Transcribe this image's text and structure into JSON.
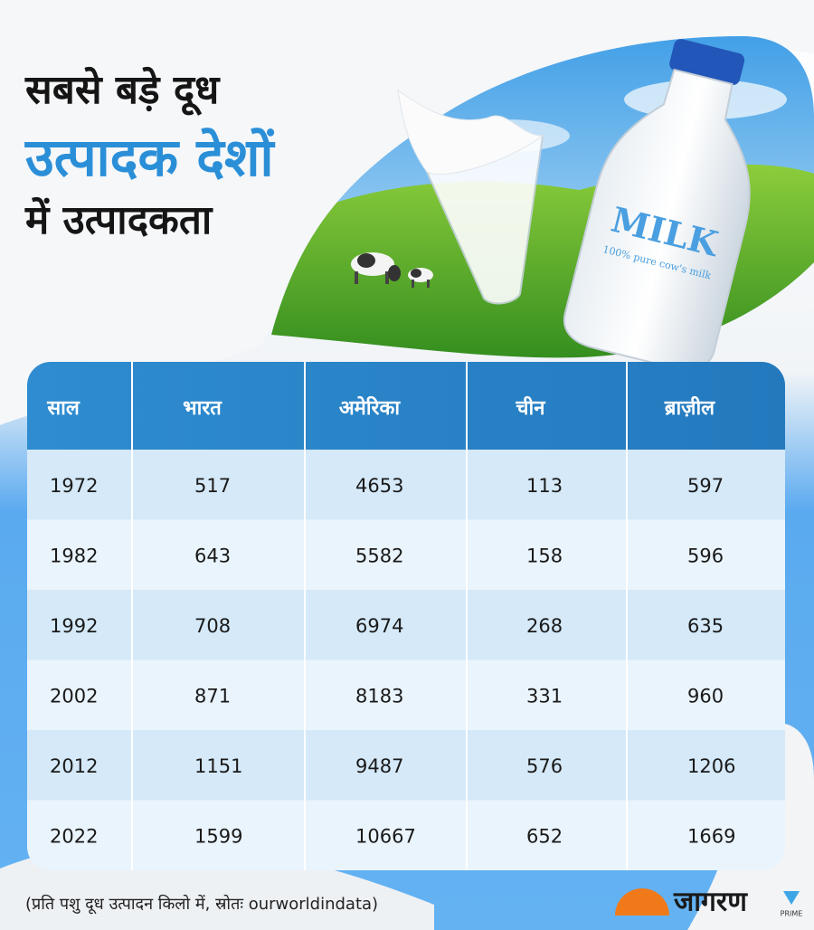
{
  "header": {
    "title_lines": [
      "सबसे बड़े दूध",
      "उत्पादक देशों",
      "में उत्पादकता"
    ]
  },
  "illustration": {
    "bottle_label": "MILK",
    "bottle_tagline": "100% pure cow's milk"
  },
  "table": {
    "columns": [
      "साल",
      "भारत",
      "अमेरिका",
      "चीन",
      "ब्राज़ील"
    ],
    "rows": [
      [
        1972,
        517,
        4653,
        113,
        597
      ],
      [
        1982,
        643,
        5582,
        158,
        596
      ],
      [
        1992,
        708,
        6974,
        268,
        635
      ],
      [
        2002,
        871,
        8183,
        331,
        960
      ],
      [
        2012,
        1151,
        9487,
        576,
        1206
      ],
      [
        2022,
        1599,
        10667,
        652,
        1669
      ]
    ]
  },
  "footnote": "(प्रति पशु दूध उत्पादन किलो में, स्रोतः ourworldindata)",
  "brand": {
    "name": "जागरण",
    "badge": "PRIME"
  }
}
